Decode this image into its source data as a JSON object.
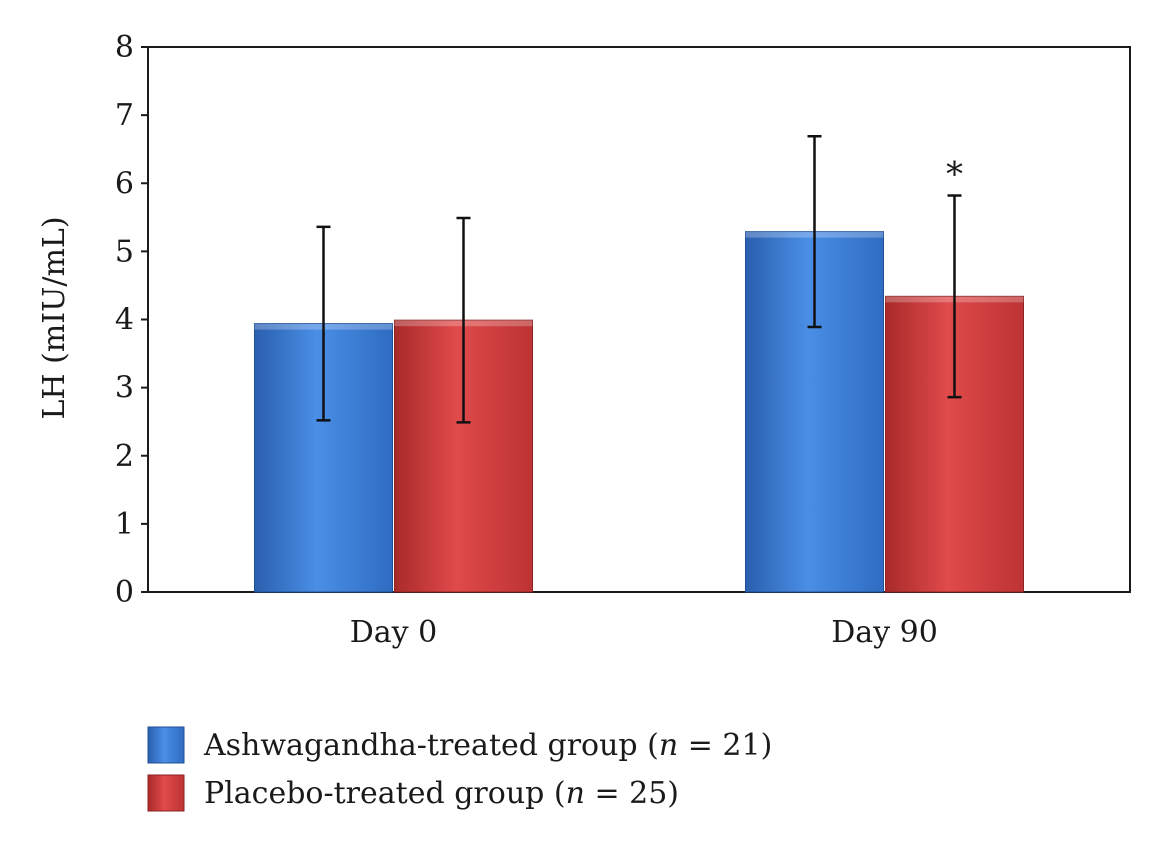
{
  "chart_data": {
    "type": "bar",
    "title": "",
    "xlabel": "",
    "ylabel": "LH (mIU/mL)",
    "categories": [
      "Day 0",
      "Day 90"
    ],
    "ylim": [
      0,
      8
    ],
    "yticks": [
      0,
      1,
      2,
      3,
      4,
      5,
      6,
      7,
      8
    ],
    "grid": false,
    "legend_position": "bottom-left",
    "series": [
      {
        "name": "Ashwagandha-treated group (n = 21)",
        "legend_parts": {
          "pre": "Ashwagandha-treated group (",
          "italic": "n",
          "post": " = 21)"
        },
        "color": "#3b7dd8",
        "values": [
          3.94,
          5.29
        ],
        "errors": [
          1.42,
          1.4
        ]
      },
      {
        "name": "Placebo-treated group (n = 25)",
        "legend_parts": {
          "pre": "Placebo-treated group (",
          "italic": "n",
          "post": " = 25)"
        },
        "color": "#d43d3d",
        "values": [
          3.99,
          4.34
        ],
        "errors": [
          1.5,
          1.48
        ]
      }
    ],
    "annotations": [
      {
        "category": "Day 90",
        "series": 1,
        "text": "*"
      }
    ]
  }
}
